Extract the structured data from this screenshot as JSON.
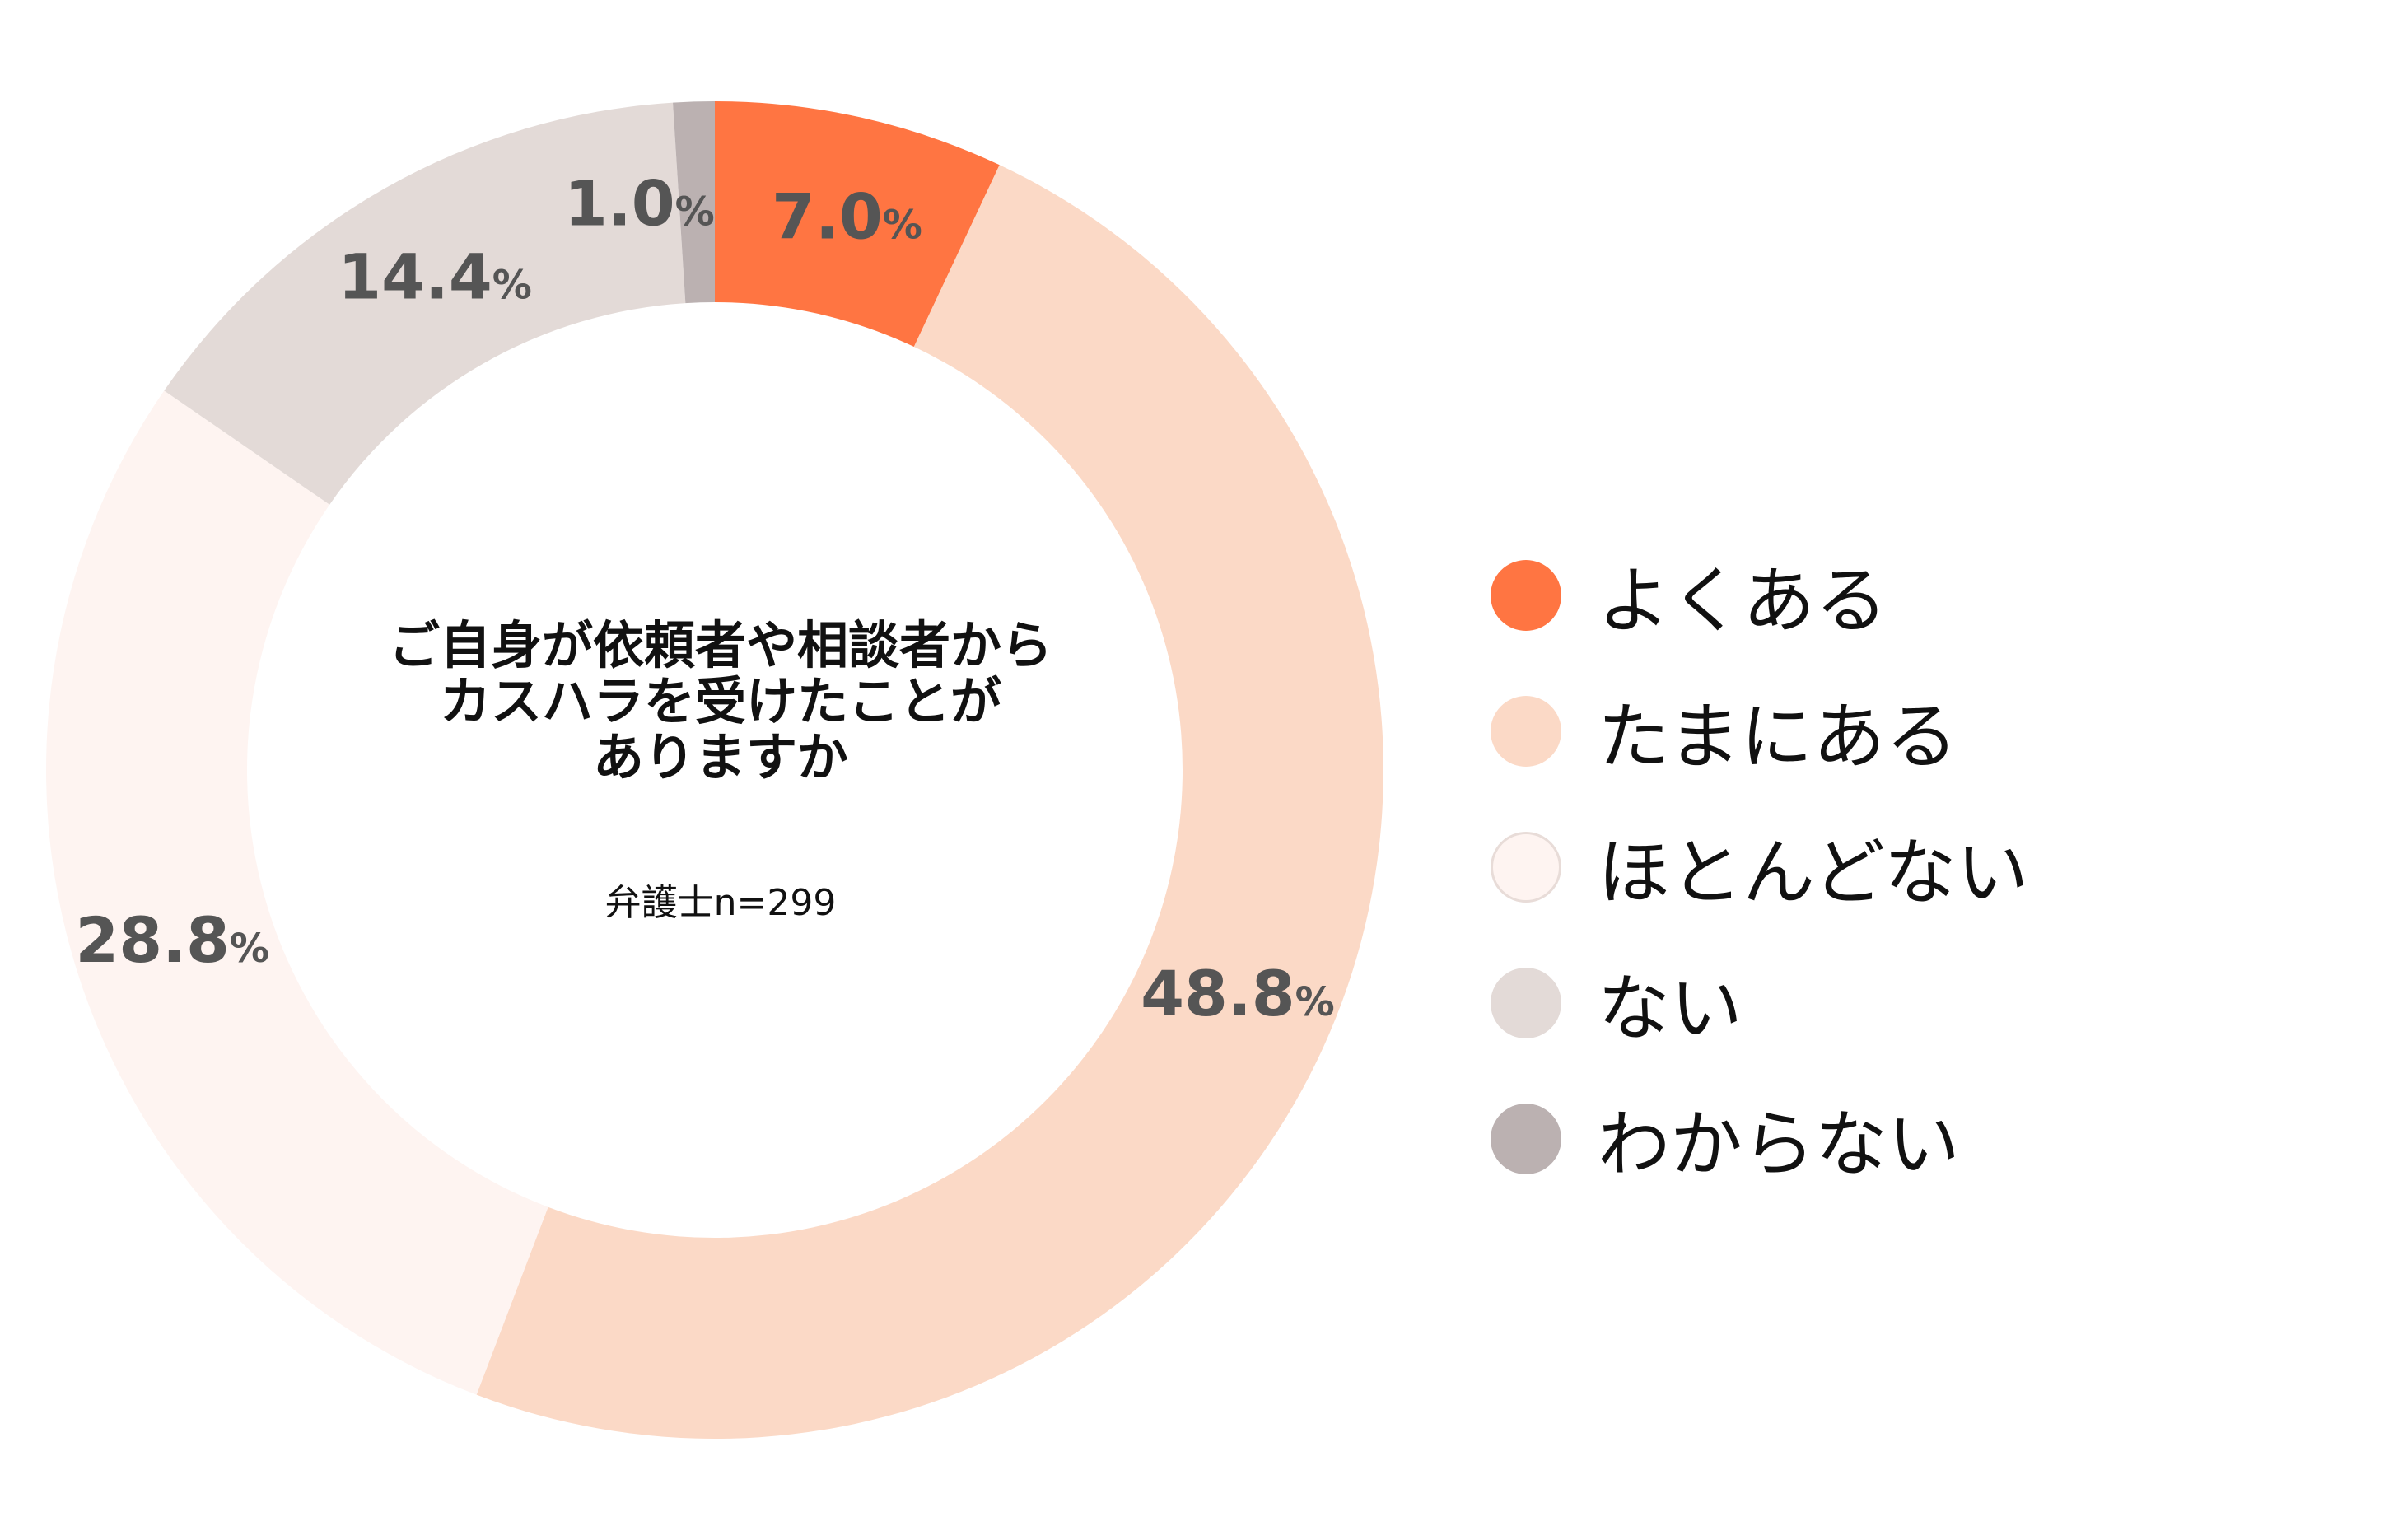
{
  "chart_data": {
    "type": "pie",
    "style": "donut",
    "center_title_lines": [
      "ご自身が依頼者や相談者から",
      "カスハラを受けたことが",
      "ありますか"
    ],
    "center_subtitle": "弁護士n=299",
    "percent_unit": "%",
    "slices": [
      {
        "label": "よくある",
        "value": 7.0,
        "value_text": "7.0",
        "color": "#FF7542"
      },
      {
        "label": "たまにある",
        "value": 48.8,
        "value_text": "48.8",
        "color": "#FBD9C6"
      },
      {
        "label": "ほとんどない",
        "value": 28.8,
        "value_text": "28.8",
        "color": "#FEF4F1"
      },
      {
        "label": "ない",
        "value": 14.4,
        "value_text": "14.4",
        "color": "#E3DAD7"
      },
      {
        "label": "わからない",
        "value": 1.0,
        "value_text": "1.0",
        "color": "#BBB1B1"
      }
    ],
    "legend_position": "right",
    "value_label_color": "#555555"
  }
}
